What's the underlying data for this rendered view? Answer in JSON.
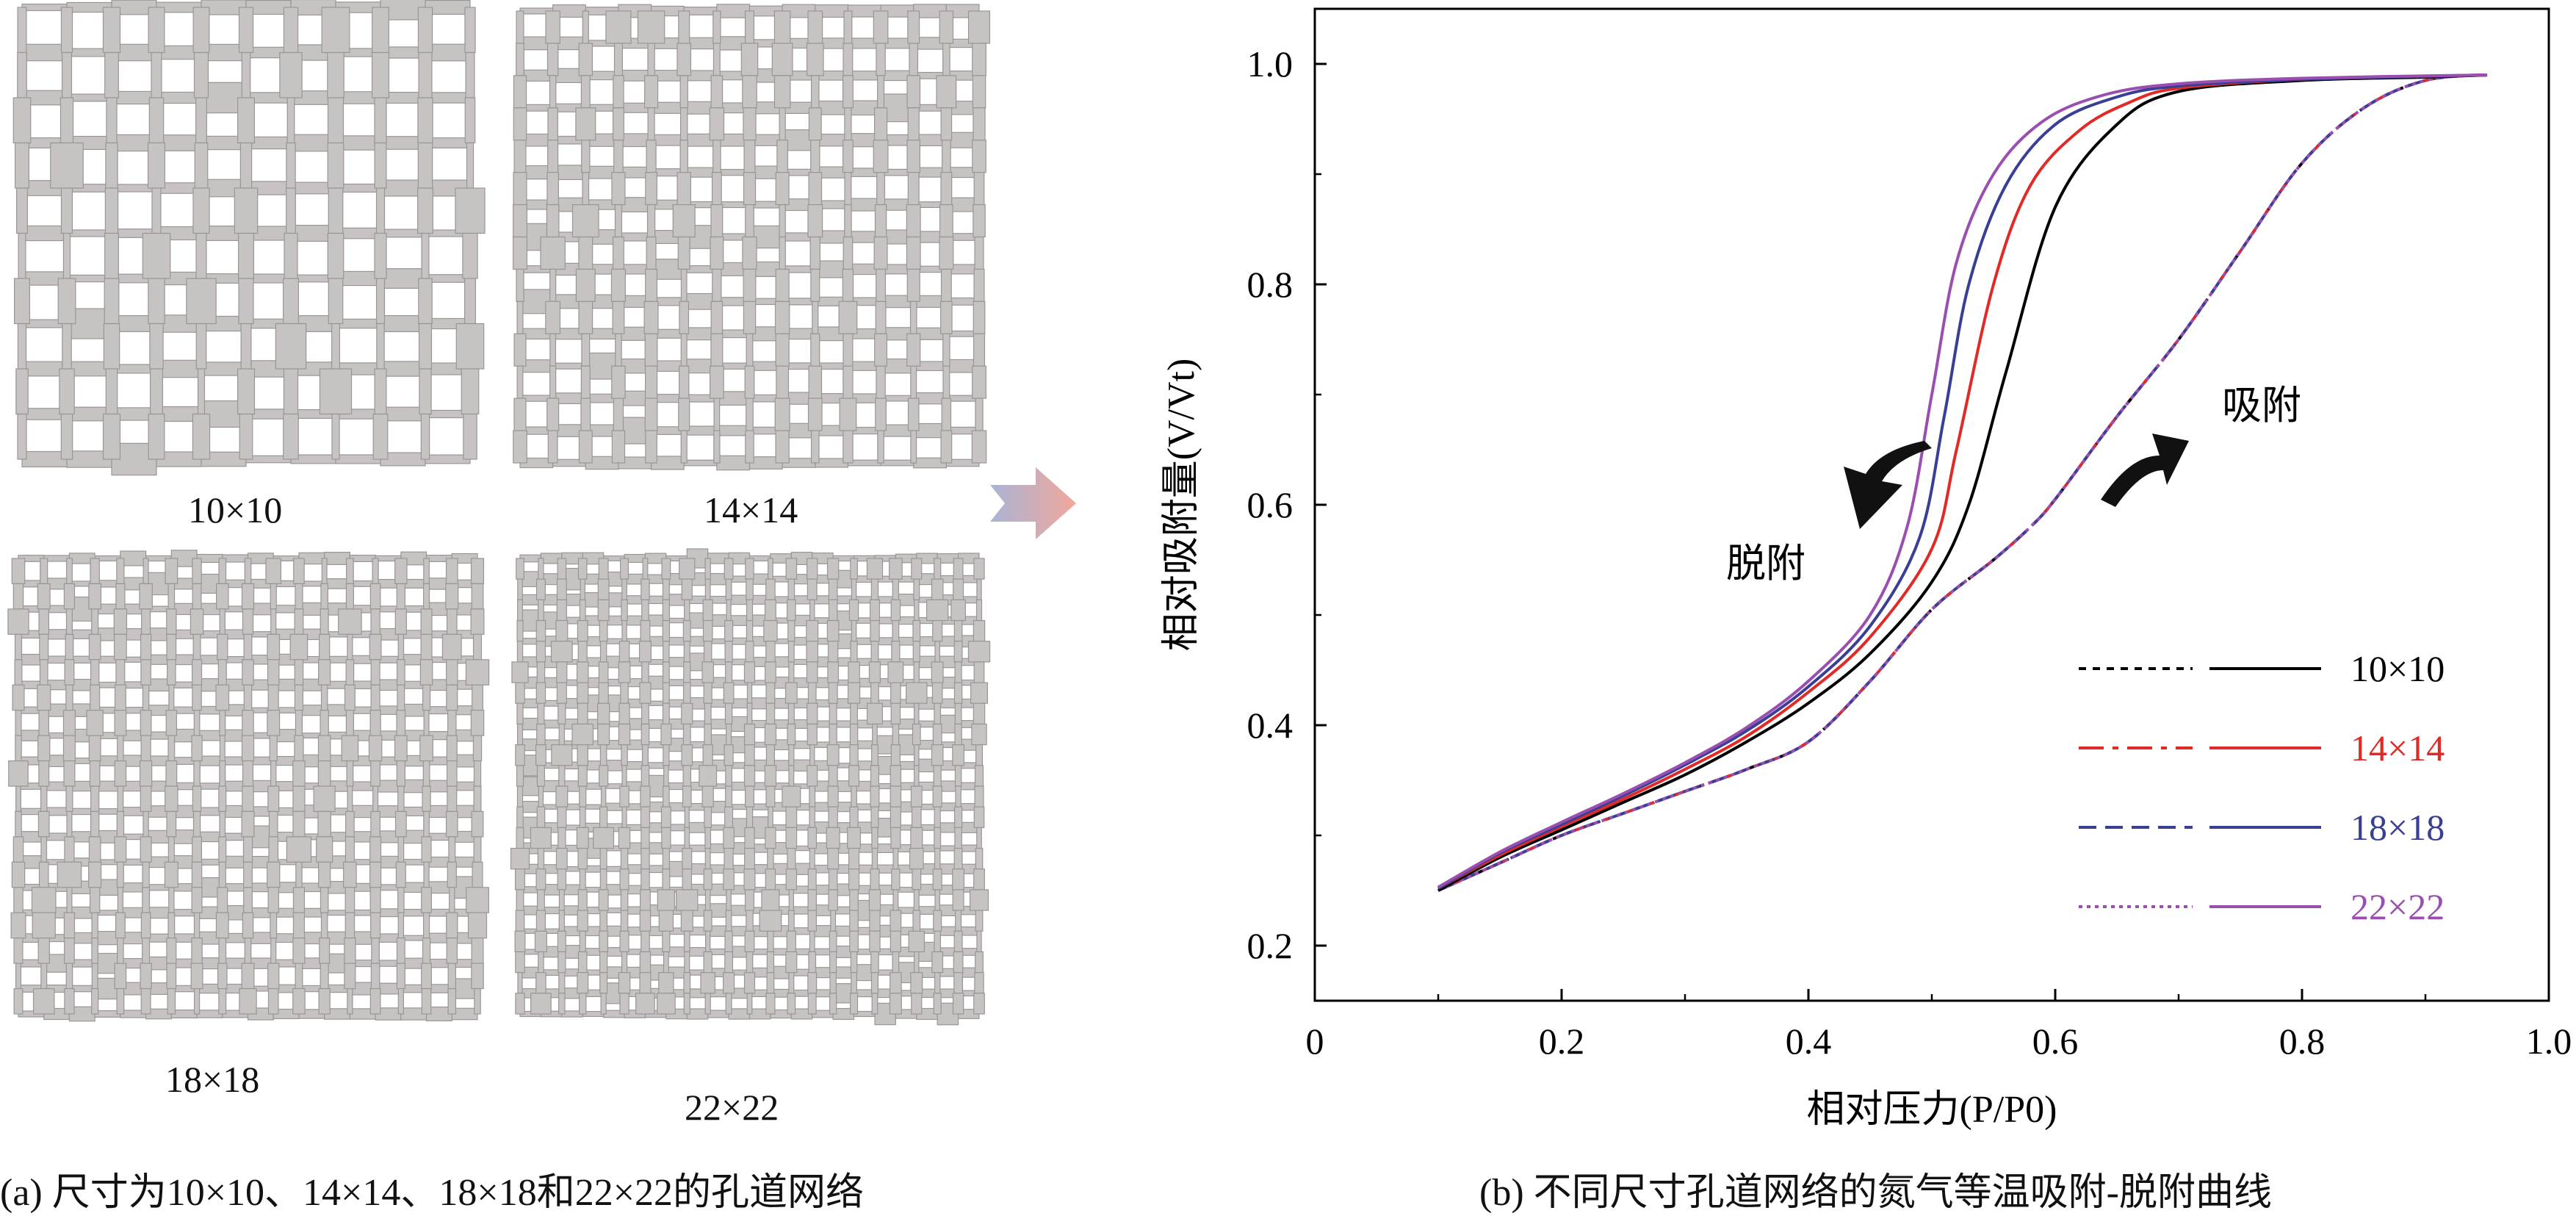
{
  "networks": [
    {
      "label": "10×10",
      "n": 10
    },
    {
      "label": "14×14",
      "n": 14
    },
    {
      "label": "18×18",
      "n": 18
    },
    {
      "label": "22×22",
      "n": 22
    }
  ],
  "captions": {
    "left": "(a) 尺寸为10×10、14×14、18×18和22×22的孔道网络",
    "right": "(b) 不同尺寸孔道网络的氮气等温吸附-脱附曲线"
  },
  "colors": {
    "pore": "#c7c3c3",
    "pore_edge": "#9a9696",
    "arrow_start": "#a9b4d6",
    "arrow_end": "#f2a79a",
    "axis": "#000000"
  },
  "chart_data": {
    "type": "line",
    "title": "",
    "xlabel": "相对压力(P/P0)",
    "ylabel": "相对吸附量(V/Vt)",
    "xlim": [
      0,
      1.0
    ],
    "ylim": [
      0.15,
      1.05
    ],
    "xticks": [
      "0",
      "0.2",
      "0.4",
      "0.6",
      "0.8",
      "1.0"
    ],
    "xtick_values": [
      0,
      0.2,
      0.4,
      0.6,
      0.8,
      1.0
    ],
    "yticks": [
      "0.2",
      "0.4",
      "0.6",
      "0.8",
      "1.0"
    ],
    "ytick_values": [
      0.2,
      0.4,
      0.6,
      0.8,
      1.0
    ],
    "annotations": {
      "adsorption": "吸附",
      "desorption": "脱附"
    },
    "legend_position": "bottom-right",
    "series": [
      {
        "name": "10×10",
        "color": "#000000",
        "adsorption": [
          [
            0.1,
            0.25
          ],
          [
            0.15,
            0.275
          ],
          [
            0.2,
            0.3
          ],
          [
            0.25,
            0.32
          ],
          [
            0.3,
            0.34
          ],
          [
            0.35,
            0.36
          ],
          [
            0.4,
            0.385
          ],
          [
            0.45,
            0.44
          ],
          [
            0.5,
            0.505
          ],
          [
            0.55,
            0.55
          ],
          [
            0.58,
            0.58
          ],
          [
            0.6,
            0.605
          ],
          [
            0.65,
            0.68
          ],
          [
            0.7,
            0.75
          ],
          [
            0.75,
            0.83
          ],
          [
            0.8,
            0.91
          ],
          [
            0.85,
            0.96
          ],
          [
            0.9,
            0.985
          ],
          [
            0.95,
            0.99
          ]
        ],
        "desorption": [
          [
            0.1,
            0.25
          ],
          [
            0.15,
            0.28
          ],
          [
            0.2,
            0.305
          ],
          [
            0.25,
            0.33
          ],
          [
            0.3,
            0.355
          ],
          [
            0.35,
            0.385
          ],
          [
            0.4,
            0.42
          ],
          [
            0.45,
            0.465
          ],
          [
            0.5,
            0.53
          ],
          [
            0.53,
            0.6
          ],
          [
            0.56,
            0.72
          ],
          [
            0.6,
            0.87
          ],
          [
            0.65,
            0.945
          ],
          [
            0.7,
            0.975
          ],
          [
            0.8,
            0.985
          ],
          [
            0.9,
            0.988
          ],
          [
            0.95,
            0.99
          ]
        ]
      },
      {
        "name": "14×14",
        "color": "#e12a26",
        "adsorption": [
          [
            0.1,
            0.25
          ],
          [
            0.15,
            0.275
          ],
          [
            0.2,
            0.3
          ],
          [
            0.25,
            0.32
          ],
          [
            0.3,
            0.34
          ],
          [
            0.35,
            0.36
          ],
          [
            0.4,
            0.385
          ],
          [
            0.45,
            0.44
          ],
          [
            0.5,
            0.505
          ],
          [
            0.55,
            0.55
          ],
          [
            0.58,
            0.58
          ],
          [
            0.6,
            0.605
          ],
          [
            0.65,
            0.68
          ],
          [
            0.7,
            0.75
          ],
          [
            0.75,
            0.83
          ],
          [
            0.8,
            0.91
          ],
          [
            0.85,
            0.96
          ],
          [
            0.9,
            0.985
          ],
          [
            0.95,
            0.99
          ]
        ],
        "desorption": [
          [
            0.1,
            0.252
          ],
          [
            0.15,
            0.282
          ],
          [
            0.2,
            0.308
          ],
          [
            0.25,
            0.333
          ],
          [
            0.3,
            0.36
          ],
          [
            0.35,
            0.39
          ],
          [
            0.4,
            0.43
          ],
          [
            0.45,
            0.48
          ],
          [
            0.5,
            0.56
          ],
          [
            0.52,
            0.65
          ],
          [
            0.55,
            0.8
          ],
          [
            0.58,
            0.89
          ],
          [
            0.62,
            0.94
          ],
          [
            0.66,
            0.965
          ],
          [
            0.7,
            0.978
          ],
          [
            0.8,
            0.986
          ],
          [
            0.95,
            0.99
          ]
        ]
      },
      {
        "name": "18×18",
        "color": "#3a3f96",
        "adsorption": [
          [
            0.1,
            0.25
          ],
          [
            0.15,
            0.275
          ],
          [
            0.2,
            0.3
          ],
          [
            0.25,
            0.32
          ],
          [
            0.3,
            0.34
          ],
          [
            0.35,
            0.36
          ],
          [
            0.4,
            0.385
          ],
          [
            0.45,
            0.44
          ],
          [
            0.5,
            0.505
          ],
          [
            0.55,
            0.55
          ],
          [
            0.58,
            0.58
          ],
          [
            0.6,
            0.605
          ],
          [
            0.65,
            0.68
          ],
          [
            0.7,
            0.75
          ],
          [
            0.75,
            0.83
          ],
          [
            0.8,
            0.91
          ],
          [
            0.85,
            0.96
          ],
          [
            0.9,
            0.985
          ],
          [
            0.95,
            0.99
          ]
        ],
        "desorption": [
          [
            0.1,
            0.252
          ],
          [
            0.15,
            0.284
          ],
          [
            0.2,
            0.31
          ],
          [
            0.25,
            0.336
          ],
          [
            0.3,
            0.364
          ],
          [
            0.35,
            0.395
          ],
          [
            0.4,
            0.435
          ],
          [
            0.45,
            0.49
          ],
          [
            0.49,
            0.57
          ],
          [
            0.51,
            0.68
          ],
          [
            0.53,
            0.8
          ],
          [
            0.56,
            0.89
          ],
          [
            0.6,
            0.945
          ],
          [
            0.65,
            0.97
          ],
          [
            0.7,
            0.98
          ],
          [
            0.8,
            0.986
          ],
          [
            0.95,
            0.99
          ]
        ]
      },
      {
        "name": "22×22",
        "color": "#9a4fb0",
        "adsorption": [
          [
            0.1,
            0.25
          ],
          [
            0.15,
            0.275
          ],
          [
            0.2,
            0.3
          ],
          [
            0.25,
            0.32
          ],
          [
            0.3,
            0.34
          ],
          [
            0.35,
            0.36
          ],
          [
            0.4,
            0.385
          ],
          [
            0.45,
            0.44
          ],
          [
            0.5,
            0.505
          ],
          [
            0.55,
            0.55
          ],
          [
            0.58,
            0.58
          ],
          [
            0.6,
            0.605
          ],
          [
            0.65,
            0.68
          ],
          [
            0.7,
            0.75
          ],
          [
            0.75,
            0.83
          ],
          [
            0.8,
            0.91
          ],
          [
            0.85,
            0.96
          ],
          [
            0.9,
            0.985
          ],
          [
            0.95,
            0.99
          ]
        ],
        "desorption": [
          [
            0.1,
            0.253
          ],
          [
            0.15,
            0.285
          ],
          [
            0.2,
            0.312
          ],
          [
            0.25,
            0.338
          ],
          [
            0.3,
            0.366
          ],
          [
            0.35,
            0.398
          ],
          [
            0.4,
            0.44
          ],
          [
            0.45,
            0.5
          ],
          [
            0.48,
            0.58
          ],
          [
            0.5,
            0.7
          ],
          [
            0.52,
            0.82
          ],
          [
            0.55,
            0.9
          ],
          [
            0.59,
            0.948
          ],
          [
            0.64,
            0.972
          ],
          [
            0.7,
            0.982
          ],
          [
            0.8,
            0.987
          ],
          [
            0.95,
            0.99
          ]
        ]
      }
    ]
  }
}
